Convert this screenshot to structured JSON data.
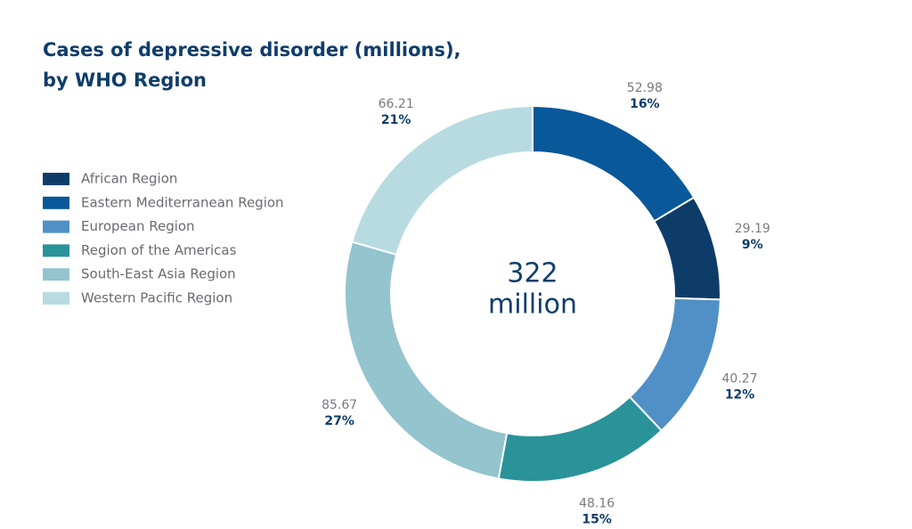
{
  "chart_data": {
    "type": "donut",
    "title": [
      "Cases of depressive disorder (millions),",
      "by WHO Region"
    ],
    "categories": [
      "Eastern Mediterranean Region",
      "African Region",
      "European Region",
      "Region of the Americas",
      "South-East Asia Region",
      "Western Pacific Region"
    ],
    "values": [
      52.98,
      29.19,
      40.27,
      48.16,
      85.67,
      66.21
    ],
    "percentages": [
      16,
      9,
      12,
      15,
      27,
      21
    ],
    "percentage_labels": [
      "16%",
      "9%",
      "12%",
      "15%",
      "27%",
      "21%"
    ],
    "colors": [
      "#08589a",
      "#0e3c69",
      "#5090c6",
      "#2a9299",
      "#94c4cd",
      "#b8dbe2"
    ],
    "total": 322,
    "total_unit": "million"
  }
}
